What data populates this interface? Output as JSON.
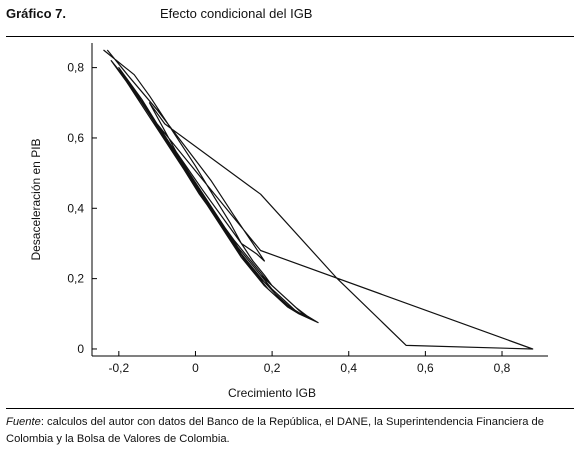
{
  "figure": {
    "label": "Gráfico 7.",
    "title": "Efecto condicional del IGB"
  },
  "source": {
    "label": "Fuente",
    "text": ": calculos del autor con datos del Banco de la República, el DANE, la Superintendencia Financiera de Colombia y la Bolsa de Valores de Colombia."
  },
  "chart_data": {
    "type": "line",
    "xlabel": "Crecimiento IGB",
    "ylabel": "Desaceleración en PIB",
    "xlim": [
      -0.27,
      0.92
    ],
    "ylim": [
      -0.02,
      0.87
    ],
    "x_ticks": [
      -0.2,
      0,
      0.2,
      0.4,
      0.6,
      0.8
    ],
    "x_tick_labels": [
      "-0,2",
      "0",
      "0,2",
      "0,4",
      "0,6",
      "0,8"
    ],
    "y_ticks": [
      0,
      0.2,
      0.4,
      0.6,
      0.8
    ],
    "y_tick_labels": [
      "0",
      "0,2",
      "0,4",
      "0,6",
      "0,8"
    ],
    "grid": false,
    "colors": {
      "line": "#111111"
    },
    "series": [
      {
        "x": [
          -0.24,
          -0.16,
          -0.12,
          -0.06,
          0.0,
          0.05,
          0.09,
          0.12,
          0.15,
          0.18,
          0.2,
          0.23,
          0.26,
          0.29,
          0.32,
          0.3,
          0.27,
          0.24,
          0.21,
          0.18,
          0.15,
          0.12,
          0.09,
          0.06,
          0.03,
          0.0,
          -0.03,
          -0.06,
          -0.09,
          -0.12,
          -0.15,
          -0.18,
          -0.2,
          -0.22,
          -0.19,
          -0.15,
          -0.11,
          -0.07,
          -0.03,
          0.01,
          0.05,
          0.08,
          0.11,
          0.14,
          0.17,
          0.2,
          0.23,
          0.26,
          0.29,
          0.31,
          0.28,
          0.25,
          0.22,
          0.19,
          0.16,
          0.13,
          0.1,
          0.07,
          0.04,
          0.01,
          -0.02,
          -0.05,
          -0.08,
          -0.11,
          -0.14,
          -0.17,
          -0.2,
          -0.18,
          -0.14,
          -0.1,
          -0.06,
          -0.02,
          0.02,
          0.06,
          0.1,
          0.13,
          0.16,
          0.19,
          0.22,
          0.25,
          0.28,
          0.3,
          0.27,
          0.24,
          0.21,
          0.18,
          0.15,
          0.12,
          0.09,
          0.06,
          0.03,
          0.0,
          -0.03,
          -0.06,
          -0.09,
          -0.12,
          -0.15,
          -0.18,
          -0.16,
          -0.12,
          -0.08,
          -0.04,
          0.0,
          0.04,
          0.08,
          0.11,
          0.14,
          0.17,
          0.2,
          0.24,
          0.27,
          0.29,
          0.26,
          0.23,
          0.2,
          0.17,
          0.14,
          0.11,
          0.08,
          0.05,
          0.02,
          -0.01,
          -0.04,
          -0.07,
          -0.1,
          0.17,
          0.88,
          0.55,
          0.37,
          0.17,
          -0.08,
          -0.12,
          -0.05,
          0.02,
          0.08,
          0.12,
          0.16,
          0.18,
          0.15,
          0.1,
          0.04,
          -0.03,
          -0.1,
          -0.17,
          -0.23
        ],
        "y": [
          0.85,
          0.78,
          0.72,
          0.62,
          0.52,
          0.43,
          0.36,
          0.3,
          0.25,
          0.21,
          0.18,
          0.15,
          0.12,
          0.095,
          0.075,
          0.085,
          0.1,
          0.12,
          0.15,
          0.18,
          0.22,
          0.26,
          0.31,
          0.36,
          0.41,
          0.46,
          0.51,
          0.56,
          0.61,
          0.66,
          0.71,
          0.76,
          0.79,
          0.82,
          0.78,
          0.72,
          0.65,
          0.58,
          0.51,
          0.44,
          0.38,
          0.33,
          0.28,
          0.24,
          0.2,
          0.17,
          0.14,
          0.11,
          0.09,
          0.08,
          0.095,
          0.115,
          0.14,
          0.17,
          0.21,
          0.25,
          0.3,
          0.35,
          0.4,
          0.45,
          0.5,
          0.55,
          0.6,
          0.65,
          0.7,
          0.75,
          0.8,
          0.77,
          0.71,
          0.64,
          0.57,
          0.5,
          0.43,
          0.37,
          0.31,
          0.27,
          0.23,
          0.19,
          0.16,
          0.13,
          0.1,
          0.085,
          0.1,
          0.125,
          0.155,
          0.19,
          0.23,
          0.27,
          0.32,
          0.37,
          0.42,
          0.47,
          0.52,
          0.57,
          0.62,
          0.67,
          0.72,
          0.76,
          0.73,
          0.67,
          0.6,
          0.53,
          0.46,
          0.4,
          0.34,
          0.29,
          0.25,
          0.21,
          0.18,
          0.14,
          0.11,
          0.09,
          0.11,
          0.14,
          0.17,
          0.21,
          0.25,
          0.29,
          0.34,
          0.39,
          0.44,
          0.49,
          0.54,
          0.59,
          0.64,
          0.28,
          0.0,
          0.01,
          0.2,
          0.44,
          0.64,
          0.7,
          0.56,
          0.45,
          0.36,
          0.3,
          0.27,
          0.25,
          0.3,
          0.38,
          0.48,
          0.58,
          0.68,
          0.77,
          0.85
        ]
      }
    ]
  }
}
